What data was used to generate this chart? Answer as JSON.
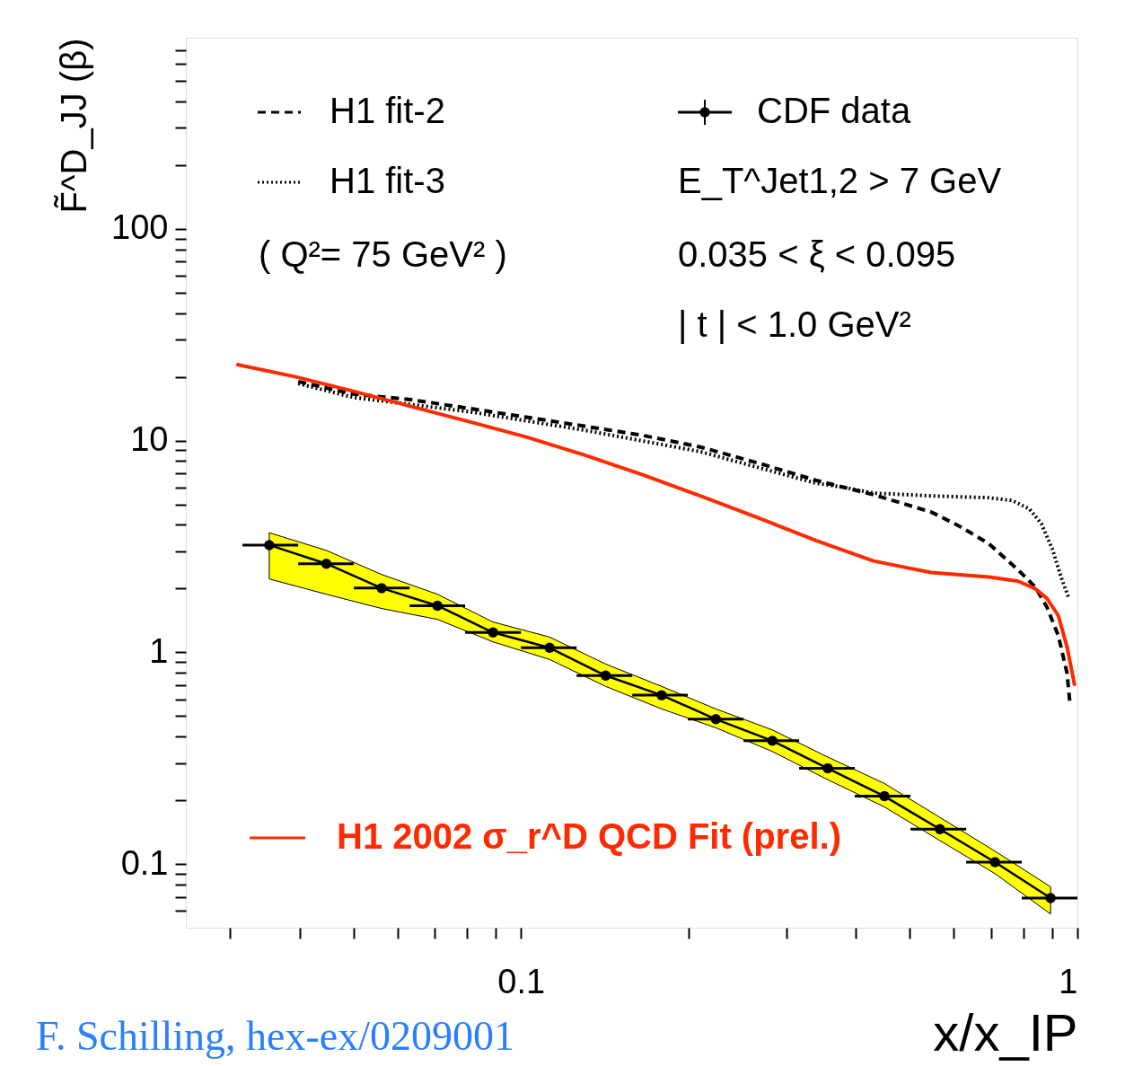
{
  "chart_data": {
    "type": "line",
    "xlabel": "x/x_IP",
    "ylabel": "F̃^D_JJ (β)",
    "log": "xy",
    "grid": false,
    "legend": "top left",
    "xlim": [
      0.025,
      1
    ],
    "ylim": [
      0.05,
      800
    ],
    "xticks": [
      {
        "value": 0.03,
        "label": null
      },
      {
        "value": 0.04,
        "label": null
      },
      {
        "value": 0.05,
        "label": null
      },
      {
        "value": 0.06,
        "label": null
      },
      {
        "value": 0.07,
        "label": null
      },
      {
        "value": 0.08,
        "label": null
      },
      {
        "value": 0.09,
        "label": null
      },
      0.1,
      {
        "value": 0.2,
        "label": null
      },
      {
        "value": 0.3,
        "label": null
      },
      {
        "value": 0.4,
        "label": null
      },
      {
        "value": 0.5,
        "label": null
      },
      {
        "value": 0.6,
        "label": null
      },
      {
        "value": 0.7,
        "label": null
      },
      {
        "value": 0.8,
        "label": null
      },
      {
        "value": 0.9,
        "label": null
      },
      1
    ],
    "yticks": [
      {
        "value": 0.06,
        "label": null
      },
      {
        "value": 0.07,
        "label": null
      },
      {
        "value": 0.08,
        "label": null
      },
      {
        "value": 0.09,
        "label": null
      },
      0.1,
      {
        "value": 0.2,
        "label": null
      },
      {
        "value": 0.3,
        "label": null
      },
      {
        "value": 0.4,
        "label": null
      },
      {
        "value": 0.5,
        "label": null
      },
      {
        "value": 0.6,
        "label": null
      },
      {
        "value": 0.7,
        "label": null
      },
      {
        "value": 0.8,
        "label": null
      },
      {
        "value": 0.9,
        "label": null
      },
      1,
      {
        "value": 2,
        "label": null
      },
      {
        "value": 3,
        "label": null
      },
      {
        "value": 4,
        "label": null
      },
      {
        "value": 5,
        "label": null
      },
      {
        "value": 6,
        "label": null
      },
      {
        "value": 7,
        "label": null
      },
      {
        "value": 8,
        "label": null
      },
      {
        "value": 9,
        "label": null
      },
      10,
      {
        "value": 20,
        "label": null
      },
      {
        "value": 30,
        "label": null
      },
      {
        "value": 40,
        "label": null
      },
      {
        "value": 50,
        "label": null
      },
      {
        "value": 60,
        "label": null
      },
      {
        "value": 70,
        "label": null
      },
      {
        "value": 80,
        "label": null
      },
      {
        "value": 90,
        "label": null
      },
      100,
      {
        "value": 200,
        "label": null
      },
      {
        "value": 300,
        "label": null
      },
      {
        "value": 400,
        "label": null
      },
      {
        "value": 500,
        "label": null
      },
      {
        "value": 600,
        "label": null
      },
      {
        "value": 700,
        "label": null
      }
    ],
    "series": [
      {
        "name": "CDF data",
        "color": "#000000",
        "line_style": "solid",
        "marker": "circle",
        "x": [
          0.0353,
          0.0447,
          0.0562,
          0.0708,
          0.0891,
          0.1126,
          0.142,
          0.179,
          0.224,
          0.283,
          0.356,
          0.45,
          0.566,
          0.711,
          0.895
        ],
        "values": [
          3.21,
          2.62,
          2.01,
          1.66,
          1.24,
          1.05,
          0.776,
          0.627,
          0.483,
          0.382,
          0.283,
          0.209,
          0.146,
          0.102,
          0.069
        ],
        "xerrors": [
          [
            0.0316,
            0.0398
          ],
          [
            0.0398,
            0.0501
          ],
          [
            0.0501,
            0.0631
          ],
          [
            0.0631,
            0.0794
          ],
          [
            0.0794,
            0.1
          ],
          [
            0.1,
            0.1259
          ],
          [
            0.1259,
            0.1585
          ],
          [
            0.1585,
            0.1995
          ],
          [
            0.1995,
            0.2512
          ],
          [
            0.2512,
            0.3162
          ],
          [
            0.3162,
            0.3981
          ],
          [
            0.3981,
            0.5012
          ],
          [
            0.5012,
            0.631
          ],
          [
            0.631,
            0.7943
          ],
          [
            0.7943,
            1
          ]
        ],
        "lower": [
          2.22,
          1.88,
          1.61,
          1.43,
          1.12,
          0.925,
          0.69,
          0.54,
          0.44,
          0.34,
          0.25,
          0.186,
          0.129,
          0.09,
          0.058
        ],
        "upper": [
          3.67,
          3.03,
          2.33,
          1.88,
          1.39,
          1.18,
          0.88,
          0.69,
          0.54,
          0.43,
          0.32,
          0.24,
          0.166,
          0.115,
          0.078
        ]
      },
      {
        "name": "H1 fit-2",
        "color": "#000000",
        "line_style": "dashed",
        "x": [
          0.0398,
          0.05,
          0.0635,
          0.0806,
          0.1023,
          0.13,
          0.165,
          0.21,
          0.267,
          0.339,
          0.381,
          0.43,
          0.546,
          0.615,
          0.693,
          0.781,
          0.839,
          0.881,
          0.924,
          0.958,
          0.969
        ],
        "values": [
          19.0,
          16.6,
          15.6,
          14.2,
          12.9,
          11.7,
          10.6,
          9.33,
          7.83,
          6.49,
          6.01,
          5.55,
          4.6,
          3.93,
          3.26,
          2.46,
          2.04,
          1.64,
          1.2,
          0.797,
          0.584
        ]
      },
      {
        "name": "H1 fit-3",
        "color": "#000000",
        "line_style": "dotted",
        "x": [
          0.0398,
          0.05,
          0.0806,
          0.13,
          0.21,
          0.339,
          0.381,
          0.43,
          0.546,
          0.693,
          0.764,
          0.82,
          0.861,
          0.902,
          0.936,
          0.965
        ],
        "values": [
          18.6,
          16.0,
          13.7,
          11.2,
          8.87,
          6.29,
          6.01,
          5.65,
          5.48,
          5.37,
          5.21,
          4.75,
          4.06,
          3.06,
          2.24,
          1.8
        ]
      },
      {
        "name": "H1 2002 σ_r^D QCD Fit (prel.)",
        "color": "#ff2a00",
        "line_style": "solid",
        "x": [
          0.0308,
          0.0394,
          0.05,
          0.0635,
          0.0806,
          0.1023,
          0.13,
          0.165,
          0.21,
          0.267,
          0.339,
          0.43,
          0.546,
          0.693,
          0.781,
          0.839,
          0.881,
          0.924,
          0.958,
          0.989
        ],
        "values": [
          22.9,
          20.0,
          17.1,
          14.5,
          12.3,
          10.4,
          8.55,
          6.91,
          5.48,
          4.32,
          3.37,
          2.7,
          2.38,
          2.27,
          2.17,
          2.0,
          1.8,
          1.49,
          1.06,
          0.695
        ]
      }
    ],
    "annotations": [
      "( Q²= 75 GeV² )",
      "E_T^Jet1,2 > 7 GeV",
      "0.035 < ξ < 0.095",
      "| t | < 1.0 GeV²",
      "F. Schilling, hex-ex/0209001"
    ]
  }
}
